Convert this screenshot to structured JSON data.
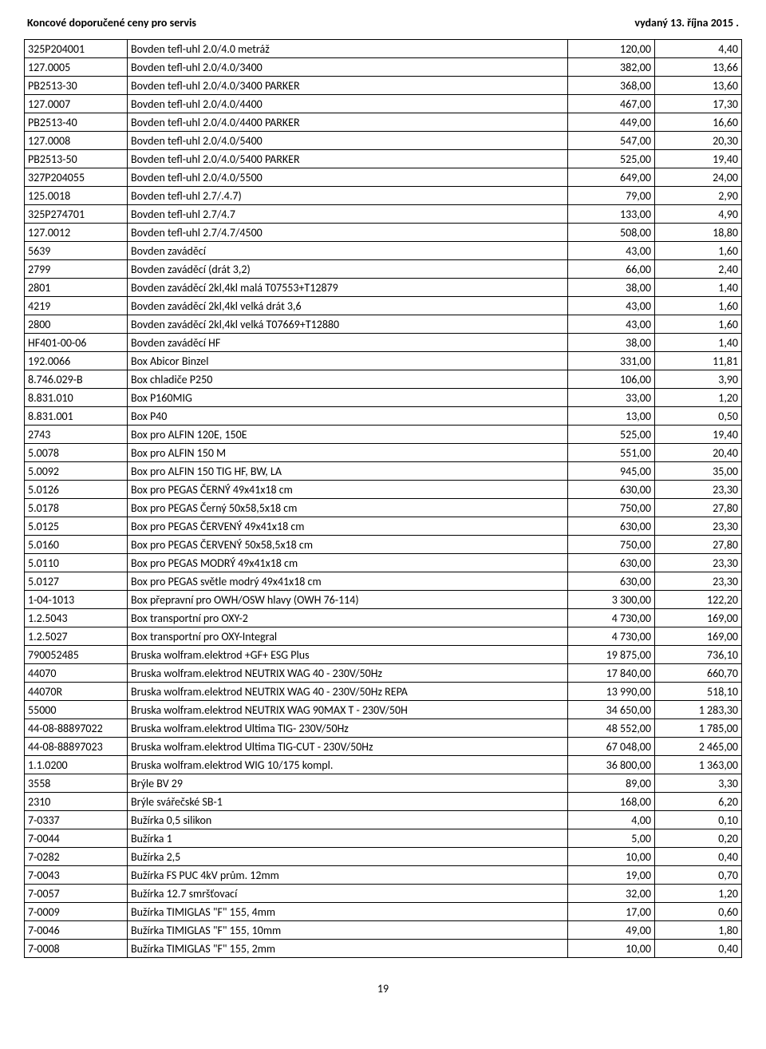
{
  "header": {
    "left": "Koncové doporučené ceny pro servis",
    "right": "vydaný 13. října 2015  ."
  },
  "table": {
    "rows": [
      [
        "325P204001",
        "Bovden tefl-uhl 2.0/4.0 metráž",
        "120,00",
        "4,40"
      ],
      [
        "127.0005",
        "Bovden tefl-uhl 2.0/4.0/3400",
        "382,00",
        "13,66"
      ],
      [
        "PB2513-30",
        "Bovden tefl-uhl 2.0/4.0/3400 PARKER",
        "368,00",
        "13,60"
      ],
      [
        "127.0007",
        "Bovden tefl-uhl 2.0/4.0/4400",
        "467,00",
        "17,30"
      ],
      [
        "PB2513-40",
        "Bovden tefl-uhl 2.0/4.0/4400 PARKER",
        "449,00",
        "16,60"
      ],
      [
        "127.0008",
        "Bovden tefl-uhl 2.0/4.0/5400",
        "547,00",
        "20,30"
      ],
      [
        "PB2513-50",
        "Bovden tefl-uhl 2.0/4.0/5400 PARKER",
        "525,00",
        "19,40"
      ],
      [
        "327P204055",
        "Bovden tefl-uhl 2.0/4.0/5500",
        "649,00",
        "24,00"
      ],
      [
        "125.0018",
        "Bovden tefl-uhl 2.7/.4.7)",
        "79,00",
        "2,90"
      ],
      [
        "325P274701",
        "Bovden tefl-uhl 2.7/4.7",
        "133,00",
        "4,90"
      ],
      [
        "127.0012",
        "Bovden tefl-uhl 2.7/4.7/4500",
        "508,00",
        "18,80"
      ],
      [
        "5639",
        "Bovden zaváděcí",
        "43,00",
        "1,60"
      ],
      [
        "2799",
        "Bovden zaváděcí (drát 3,2)",
        "66,00",
        "2,40"
      ],
      [
        "2801",
        "Bovden zaváděcí 2kl,4kl malá T07553+T12879",
        "38,00",
        "1,40"
      ],
      [
        "4219",
        "Bovden zaváděcí 2kl,4kl velká drát 3,6",
        "43,00",
        "1,60"
      ],
      [
        "2800",
        "Bovden zaváděcí 2kl,4kl velká T07669+T12880",
        "43,00",
        "1,60"
      ],
      [
        "HF401-00-06",
        "Bovden zaváděcí HF",
        "38,00",
        "1,40"
      ],
      [
        "192.0066",
        "Box Abicor Binzel",
        "331,00",
        "11,81"
      ],
      [
        "8.746.029-B",
        "Box chladiče P250",
        "106,00",
        "3,90"
      ],
      [
        "8.831.010",
        "Box P160MIG",
        "33,00",
        "1,20"
      ],
      [
        "8.831.001",
        "Box P40",
        "13,00",
        "0,50"
      ],
      [
        "2743",
        "Box pro ALFIN 120E, 150E",
        "525,00",
        "19,40"
      ],
      [
        "5.0078",
        "Box pro ALFIN 150 M",
        "551,00",
        "20,40"
      ],
      [
        "5.0092",
        "Box pro ALFIN 150 TIG HF, BW, LA",
        "945,00",
        "35,00"
      ],
      [
        "5.0126",
        "Box pro PEGAS ČERNÝ 49x41x18 cm",
        "630,00",
        "23,30"
      ],
      [
        "5.0178",
        "Box pro PEGAS Černý 50x58,5x18 cm",
        "750,00",
        "27,80"
      ],
      [
        "5.0125",
        "Box pro PEGAS ČERVENÝ 49x41x18 cm",
        "630,00",
        "23,30"
      ],
      [
        "5.0160",
        "Box pro PEGAS ČERVENÝ 50x58,5x18 cm",
        "750,00",
        "27,80"
      ],
      [
        "5.0110",
        "Box pro PEGAS MODRÝ 49x41x18 cm",
        "630,00",
        "23,30"
      ],
      [
        "5.0127",
        "Box pro PEGAS světle modrý 49x41x18 cm",
        "630,00",
        "23,30"
      ],
      [
        "1-04-1013",
        "Box přepravní pro OWH/OSW hlavy (OWH 76-114)",
        "3 300,00",
        "122,20"
      ],
      [
        "1.2.5043",
        "Box transportní pro OXY-2",
        "4 730,00",
        "169,00"
      ],
      [
        "1.2.5027",
        "Box transportní pro OXY-Integral",
        "4 730,00",
        "169,00"
      ],
      [
        "790052485",
        "Bruska wolfram.elektrod +GF+  ESG Plus",
        "19 875,00",
        "736,10"
      ],
      [
        "44070",
        "Bruska wolfram.elektrod NEUTRIX WAG 40 - 230V/50Hz",
        "17 840,00",
        "660,70"
      ],
      [
        "44070R",
        "Bruska wolfram.elektrod NEUTRIX WAG 40 - 230V/50Hz REPA",
        "13 990,00",
        "518,10"
      ],
      [
        "55000",
        "Bruska wolfram.elektrod NEUTRIX WAG 90MAX T - 230V/50H",
        "34 650,00",
        "1 283,30"
      ],
      [
        "44-08-88897022",
        "Bruska wolfram.elektrod Ultima TIG- 230V/50Hz",
        "48 552,00",
        "1 785,00"
      ],
      [
        "44-08-88897023",
        "Bruska wolfram.elektrod Ultima TIG-CUT - 230V/50Hz",
        "67 048,00",
        "2 465,00"
      ],
      [
        "1.1.0200",
        "Bruska wolfram.elektrod WIG 10/175 kompl.",
        "36 800,00",
        "1 363,00"
      ],
      [
        "3558",
        "Brýle BV 29",
        "89,00",
        "3,30"
      ],
      [
        "2310",
        "Brýle svářečské SB-1",
        "168,00",
        "6,20"
      ],
      [
        "7-0337",
        "Bužírka  0,5 silikon",
        "4,00",
        "0,10"
      ],
      [
        "7-0044",
        "Bužírka  1",
        "5,00",
        "0,20"
      ],
      [
        "7-0282",
        "Bužírka  2,5",
        "10,00",
        "0,40"
      ],
      [
        "7-0043",
        "Bužírka  FS PUC 4kV  prům. 12mm",
        "19,00",
        "0,70"
      ],
      [
        "7-0057",
        "Bužírka 12.7 smršťovací",
        "32,00",
        "1,20"
      ],
      [
        "7-0009",
        "Bužírka TIMIGLAS  \"F\" 155, 4mm",
        "17,00",
        "0,60"
      ],
      [
        "7-0046",
        "Bužírka TIMIGLAS \"F\" 155, 10mm",
        "49,00",
        "1,80"
      ],
      [
        "7-0008",
        "Bužírka TIMIGLAS \"F\" 155, 2mm",
        "10,00",
        "0,40"
      ]
    ]
  },
  "pagenum": "19"
}
